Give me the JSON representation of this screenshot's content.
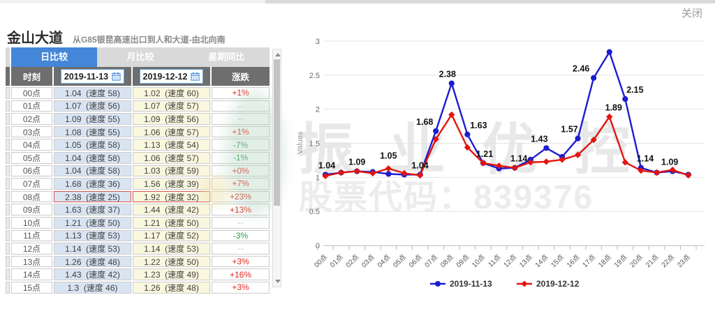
{
  "page": {
    "close_label": "关闭"
  },
  "header": {
    "title": "金山大道",
    "subtitle": "从G85银昆高速出口到人和大道-由北向南"
  },
  "tabs": [
    {
      "label": "日比较",
      "active": true
    },
    {
      "label": "月比较",
      "active": false
    },
    {
      "label": "星期同比",
      "active": false
    }
  ],
  "table": {
    "col_time": "时刻",
    "date1": "2019-11-13",
    "date2": "2019-12-12",
    "col_change": "涨跌",
    "rows": [
      {
        "time": "00点",
        "v1": "1.04  (速度 58)",
        "v2": "1.02  (速度 60)",
        "change": "+1%",
        "dir": "up",
        "highlight": false
      },
      {
        "time": "01点",
        "v1": "1.07  (速度 56)",
        "v2": "1.07  (速度 57)",
        "change": "--",
        "dir": "none",
        "highlight": false
      },
      {
        "time": "02点",
        "v1": "1.09  (速度 55)",
        "v2": "1.09  (速度 56)",
        "change": "--",
        "dir": "none",
        "highlight": false
      },
      {
        "time": "03点",
        "v1": "1.08  (速度 55)",
        "v2": "1.06  (速度 57)",
        "change": "+1%",
        "dir": "up",
        "highlight": false
      },
      {
        "time": "04点",
        "v1": "1.05  (速度 58)",
        "v2": "1.13  (速度 54)",
        "change": "-7%",
        "dir": "down",
        "highlight": false
      },
      {
        "time": "05点",
        "v1": "1.04  (速度 58)",
        "v2": "1.06  (速度 57)",
        "change": "-1%",
        "dir": "down",
        "highlight": false
      },
      {
        "time": "06点",
        "v1": "1.04  (速度 58)",
        "v2": "1.03  (速度 59)",
        "change": "+0%",
        "dir": "up",
        "highlight": false
      },
      {
        "time": "07点",
        "v1": "1.68  (速度 36)",
        "v2": "1.56  (速度 39)",
        "change": "+7%",
        "dir": "up",
        "highlight": false
      },
      {
        "time": "08点",
        "v1": "2.38  (速度 25)",
        "v2": "1.92  (速度 32)",
        "change": "+23%",
        "dir": "up",
        "highlight": true
      },
      {
        "time": "09点",
        "v1": "1.63  (速度 37)",
        "v2": "1.44  (速度 42)",
        "change": "+13%",
        "dir": "up",
        "highlight": false
      },
      {
        "time": "10点",
        "v1": "1.21  (速度 50)",
        "v2": "1.21  (速度 50)",
        "change": "--",
        "dir": "none",
        "highlight": false
      },
      {
        "time": "11点",
        "v1": "1.13  (速度 53)",
        "v2": "1.17  (速度 52)",
        "change": "-3%",
        "dir": "down",
        "highlight": false
      },
      {
        "time": "12点",
        "v1": "1.14  (速度 53)",
        "v2": "1.14  (速度 53)",
        "change": "--",
        "dir": "none",
        "highlight": false
      },
      {
        "time": "13点",
        "v1": "1.26  (速度 48)",
        "v2": "1.22  (速度 50)",
        "change": "+3%",
        "dir": "up",
        "highlight": false
      },
      {
        "time": "14点",
        "v1": "1.43  (速度 42)",
        "v2": "1.23  (速度 49)",
        "change": "+16%",
        "dir": "up",
        "highlight": false
      },
      {
        "time": "15点",
        "v1": "1.3  (速度 46)",
        "v2": "1.26  (速度 48)",
        "change": "+3%",
        "dir": "up",
        "highlight": false
      }
    ]
  },
  "watermark": {
    "line1": "振业优控",
    "line2": "股票代码：839376"
  },
  "chart_data": {
    "type": "line",
    "ylabel": "Values",
    "ylim": [
      0,
      3
    ],
    "yticks": [
      0,
      0.5,
      1,
      1.5,
      2,
      2.5,
      3
    ],
    "grid": true,
    "legend_position": "bottom",
    "categories": [
      "00点",
      "01点",
      "02点",
      "03点",
      "04点",
      "05点",
      "06点",
      "07点",
      "08点",
      "09点",
      "10点",
      "11点",
      "12点",
      "13点",
      "14点",
      "15点",
      "16点",
      "17点",
      "18点",
      "19点",
      "20点",
      "21点",
      "22点",
      "23点"
    ],
    "series": [
      {
        "name": "2019-11-13",
        "color": "#1c1ccf",
        "marker": "circle",
        "values": [
          1.04,
          1.07,
          1.09,
          1.08,
          1.05,
          1.04,
          1.04,
          1.68,
          2.38,
          1.63,
          1.21,
          1.13,
          1.14,
          1.26,
          1.43,
          1.3,
          1.57,
          2.46,
          2.84,
          2.15,
          1.14,
          1.07,
          1.09,
          1.04
        ]
      },
      {
        "name": "2019-12-12",
        "color": "#e2150e",
        "marker": "diamond",
        "values": [
          1.02,
          1.07,
          1.09,
          1.06,
          1.13,
          1.06,
          1.03,
          1.56,
          1.92,
          1.44,
          1.21,
          1.17,
          1.14,
          1.22,
          1.23,
          1.26,
          1.33,
          1.55,
          1.89,
          1.22,
          1.1,
          1.07,
          1.11,
          1.03
        ]
      }
    ],
    "point_labels": [
      {
        "i": 0,
        "text": "1.04",
        "dx": 2
      },
      {
        "i": 2,
        "text": "1.09"
      },
      {
        "i": 4,
        "text": "1.05",
        "dy": -13
      },
      {
        "i": 6,
        "text": "1.04"
      },
      {
        "i": 7,
        "text": "1.68",
        "dx": -16
      },
      {
        "i": 8,
        "text": "2.38",
        "dx": -6
      },
      {
        "i": 9,
        "text": "1.63",
        "dx": 16
      },
      {
        "i": 10,
        "text": "1.21",
        "dx": 2
      },
      {
        "i": 12,
        "text": "1.14",
        "dx": 6
      },
      {
        "i": 14,
        "text": "1.43",
        "dx": -10
      },
      {
        "i": 16,
        "text": "1.57",
        "dx": -12
      },
      {
        "i": 17,
        "text": "2.46",
        "dx": -18
      },
      {
        "i": 18,
        "series": 1,
        "text": "1.89",
        "dx": 6
      },
      {
        "i": 19,
        "text": "2.15",
        "dx": 14
      },
      {
        "i": 20,
        "text": "1.14",
        "dx": 6
      },
      {
        "i": 22,
        "text": "1.09",
        "dx": -4
      }
    ]
  }
}
